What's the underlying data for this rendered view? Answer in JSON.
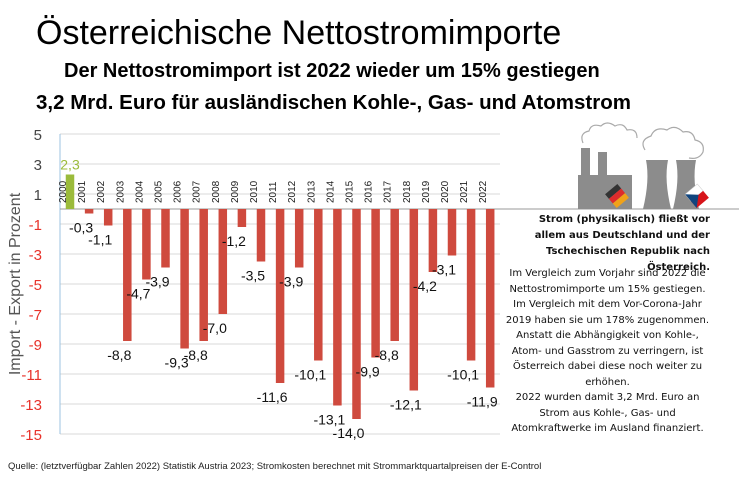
{
  "title": "Österreichische Nettostromimporte",
  "subtitle1": "Der Nettostromimport ist 2022 wieder um 15% gestiegen",
  "subtitle2": "3,2 Mrd. Euro für ausländischen Kohle-, Gas- und Atomstrom",
  "side_bold": "Strom (physikalisch) fließt vor allem aus Deutschland und der Tschechischen Republik nach Österreich.",
  "side_text": [
    "Im Vergleich zum Vorjahr sind 2022 die Nettostromimporte um 15% gestiegen. Im Vergleich mit dem Vor-Corona-Jahr 2019 haben sie um 178% zugenommen. Anstatt die Abhängigkeit von Kohle-, Atom- und Gasstrom zu verringern, ist Österreich dabei diese noch weiter zu erhöhen.",
    "2022 wurden damit 3,2 Mrd. Euro an Strom aus Kohle-, Gas- und Atomkraftwerke im Ausland finanziert."
  ],
  "source": "Quelle: (letztverfügbar Zahlen 2022) Statistik Austria 2023; Stromkosten berechnet mit Strommarktquartalpreisen der E-Control",
  "colors": {
    "negative": "#cf4a3e",
    "positive": "#9bbb3b",
    "neg_tick": "#e8322a",
    "grid": "#d9d9d9"
  },
  "chart_data": {
    "type": "bar",
    "title": "Österreichische Nettostromimporte",
    "ylabel": "Import - Export in Prozent",
    "xlabel": "",
    "ylim": [
      -15,
      5
    ],
    "yticks": [
      5,
      3,
      1,
      -1,
      -3,
      -5,
      -7,
      -9,
      -11,
      -13,
      -15
    ],
    "ytick_labels": [
      "5",
      "3",
      "1",
      "-1",
      "-3",
      "-5",
      "-7",
      "-9",
      "-11",
      "-13",
      "-15"
    ],
    "categories": [
      "2000",
      "2001",
      "2002",
      "2003",
      "2004",
      "2005",
      "2006",
      "2007",
      "2008",
      "2009",
      "2010",
      "2011",
      "2012",
      "2013",
      "2014",
      "2015",
      "2016",
      "2017",
      "2018",
      "2019",
      "2020",
      "2021",
      "2022"
    ],
    "values": [
      2.3,
      -0.3,
      -1.1,
      -8.8,
      -4.7,
      -3.9,
      -9.3,
      -8.8,
      -7.0,
      -1.2,
      -3.5,
      -11.6,
      -3.9,
      -10.1,
      -13.1,
      -14.0,
      -9.9,
      -8.8,
      -12.1,
      -4.2,
      -3.1,
      -10.1,
      -11.9
    ],
    "labels": [
      "2,3",
      "-0,3",
      "-1,1",
      "-8,8",
      "-4,7",
      "-3,9",
      "-9,3",
      "-8,8",
      "-7,0",
      "-1,2",
      "-3,5",
      "-11,6",
      "-3,9",
      "-10,1",
      "-13,1",
      "-14,0",
      "-9,9",
      "-8,8",
      "-12,1",
      "-4,2",
      "-3,1",
      "-10,1",
      "-11,9"
    ],
    "grid": true,
    "legend": "none"
  }
}
